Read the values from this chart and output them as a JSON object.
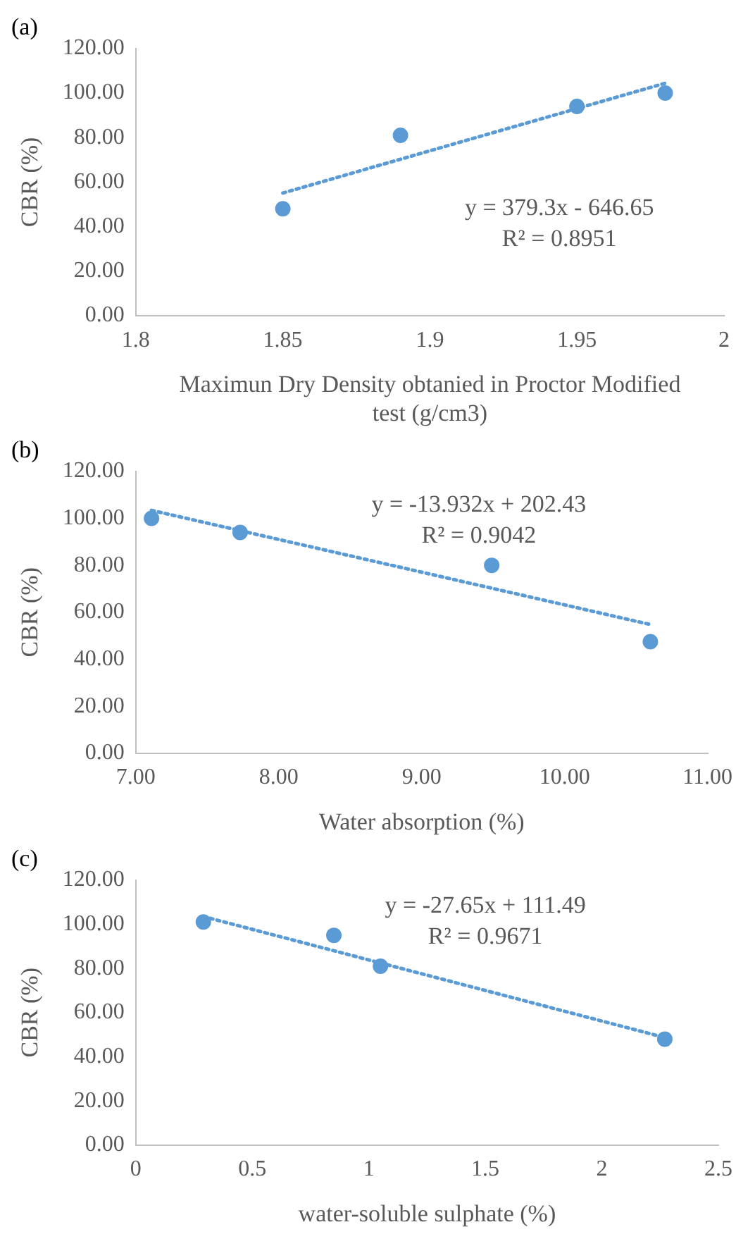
{
  "chart_data": [
    {
      "type": "scatter",
      "title": "(a)",
      "xlabel": "Maximun Dry Density obtanied in Proctor Modified test (g/cm3)",
      "ylabel": "CBR (%)",
      "x": [
        1.85,
        1.89,
        1.95,
        1.98
      ],
      "xlim": [
        1.8,
        2
      ],
      "xticks": [
        1.8,
        1.85,
        1.9,
        1.95,
        2
      ],
      "ylim": [
        0,
        120
      ],
      "yticks": [
        {
          "value": 0,
          "label": "0.00"
        },
        {
          "value": 20,
          "label": "20.00"
        },
        {
          "value": 40,
          "label": "40.00"
        },
        {
          "value": 60,
          "label": "60.00"
        },
        {
          "value": 80,
          "label": "80.00"
        },
        {
          "value": 100,
          "label": "100.00"
        },
        {
          "value": 120,
          "label": "120.00"
        }
      ],
      "grid": false,
      "legend": false,
      "marker": "circle",
      "annotations": [
        "y = 379.3x - 646.65",
        "R² = 0.8951"
      ],
      "series": [
        {
          "color": "#5b9bd5",
          "values": [
            48,
            81,
            94,
            100
          ]
        },
        {
          "type": "line",
          "color": "#5b9bd5",
          "line_style": "dotted",
          "marker": "none",
          "x": [
            1.85,
            1.98
          ],
          "values": [
            55.1,
            104.4
          ]
        }
      ]
    },
    {
      "type": "scatter",
      "title": "(b)",
      "xlabel": "Water absorption (%)",
      "ylabel": "CBR (%)",
      "x": [
        7.11,
        7.73,
        9.49,
        10.6
      ],
      "xlim": [
        7,
        11
      ],
      "xticks": [
        {
          "value": 7,
          "label": "7.00"
        },
        {
          "value": 8,
          "label": "8.00"
        },
        {
          "value": 9,
          "label": "9.00"
        },
        {
          "value": 10,
          "label": "10.00"
        },
        {
          "value": 11,
          "label": "11.00"
        }
      ],
      "ylim": [
        0,
        120
      ],
      "yticks": [
        {
          "value": 0,
          "label": "0.00"
        },
        {
          "value": 20,
          "label": "20.00"
        },
        {
          "value": 40,
          "label": "40.00"
        },
        {
          "value": 60,
          "label": "60.00"
        },
        {
          "value": 80,
          "label": "80.00"
        },
        {
          "value": 100,
          "label": "100.00"
        },
        {
          "value": 120,
          "label": "120.00"
        }
      ],
      "grid": false,
      "legend": false,
      "marker": "circle",
      "annotations": [
        "y = -13.932x + 202.43",
        "R² = 0.9042"
      ],
      "series": [
        {
          "color": "#5b9bd5",
          "values": [
            100,
            94,
            80,
            47.5
          ]
        },
        {
          "type": "line",
          "color": "#5b9bd5",
          "line_style": "dotted",
          "marker": "none",
          "x": [
            7.11,
            10.6
          ],
          "values": [
            103.4,
            54.8
          ]
        }
      ]
    },
    {
      "type": "scatter",
      "title": "(c)",
      "xlabel": "water-soluble sulphate (%)",
      "ylabel": "CBR (%)",
      "x": [
        0.29,
        0.85,
        1.05,
        2.27
      ],
      "xlim": [
        0,
        2.5
      ],
      "xticks": [
        0,
        0.5,
        1,
        1.5,
        2,
        2.5
      ],
      "ylim": [
        0,
        120
      ],
      "yticks": [
        {
          "value": 0,
          "label": "0.00"
        },
        {
          "value": 20,
          "label": "20.00"
        },
        {
          "value": 40,
          "label": "40.00"
        },
        {
          "value": 60,
          "label": "60.00"
        },
        {
          "value": 80,
          "label": "80.00"
        },
        {
          "value": 100,
          "label": "100.00"
        },
        {
          "value": 120,
          "label": "120.00"
        }
      ],
      "grid": false,
      "legend": false,
      "marker": "circle",
      "annotations": [
        "y = -27.65x + 111.49",
        "R² = 0.9671"
      ],
      "series": [
        {
          "color": "#5b9bd5",
          "values": [
            101,
            95,
            81,
            48
          ]
        },
        {
          "type": "line",
          "color": "#5b9bd5",
          "line_style": "dotted",
          "marker": "none",
          "x": [
            0.29,
            2.27
          ],
          "values": [
            103.5,
            48.7
          ]
        }
      ]
    }
  ]
}
